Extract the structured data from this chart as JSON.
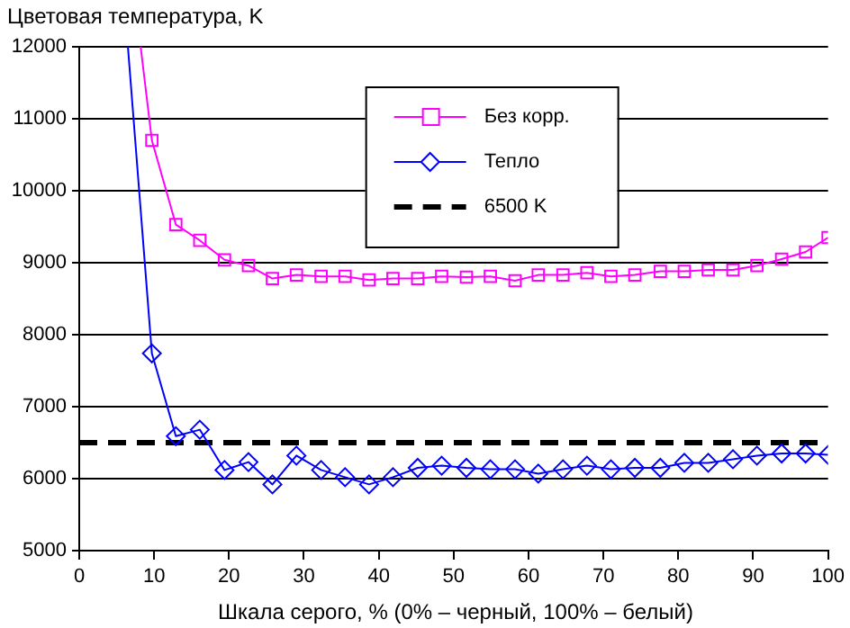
{
  "chart_data": {
    "type": "line",
    "ylabel": "Цветовая температура, K",
    "xlabel": "Шкала серого, % (0% – черный, 100% – белый)",
    "xlim": [
      0,
      100
    ],
    "xticks": [
      0,
      10,
      20,
      30,
      40,
      50,
      60,
      70,
      80,
      90,
      100
    ],
    "ylim": [
      5000,
      12000
    ],
    "yticks": [
      5000,
      6000,
      7000,
      8000,
      9000,
      10000,
      11000,
      12000
    ],
    "grid": "y",
    "legend": "top right",
    "series": [
      {
        "name": "Без корр.",
        "color": "#ff00ff",
        "marker": "square",
        "x": [
          8.2,
          9.7,
          12.9,
          16.1,
          19.4,
          22.6,
          25.8,
          29,
          32.3,
          35.5,
          38.7,
          41.9,
          45.2,
          48.4,
          51.7,
          54.9,
          58.2,
          61.3,
          64.6,
          67.8,
          71,
          74.2,
          77.6,
          80.8,
          84,
          87.3,
          90.5,
          93.8,
          97,
          100
        ],
        "values": [
          12000,
          10700,
          9530,
          9310,
          9040,
          8960,
          8780,
          8830,
          8810,
          8810,
          8760,
          8780,
          8780,
          8810,
          8800,
          8810,
          8750,
          8830,
          8830,
          8860,
          8810,
          8830,
          8880,
          8880,
          8900,
          8900,
          8960,
          9050,
          9150,
          9350
        ]
      },
      {
        "name": "Тепло",
        "color": "#0000ff",
        "marker": "diamond",
        "x": [
          6.5,
          9.7,
          12.9,
          16.1,
          19.4,
          22.6,
          25.8,
          29,
          32.3,
          35.5,
          38.7,
          41.9,
          45.2,
          48.4,
          51.7,
          54.9,
          58.2,
          61.3,
          64.6,
          67.8,
          71,
          74.2,
          77.6,
          80.8,
          84,
          87.3,
          90.5,
          93.8,
          97,
          100
        ],
        "values": [
          12000,
          7740,
          6590,
          6680,
          6120,
          6230,
          5920,
          6320,
          6120,
          6020,
          5920,
          6020,
          6150,
          6180,
          6150,
          6130,
          6130,
          6070,
          6130,
          6180,
          6130,
          6150,
          6150,
          6220,
          6220,
          6270,
          6320,
          6350,
          6350,
          6330
        ]
      }
    ],
    "ref_lines": [
      {
        "axis": "y",
        "value": 6500,
        "label": "6500 K",
        "color": "#000000",
        "line_style": "dashed"
      }
    ]
  }
}
